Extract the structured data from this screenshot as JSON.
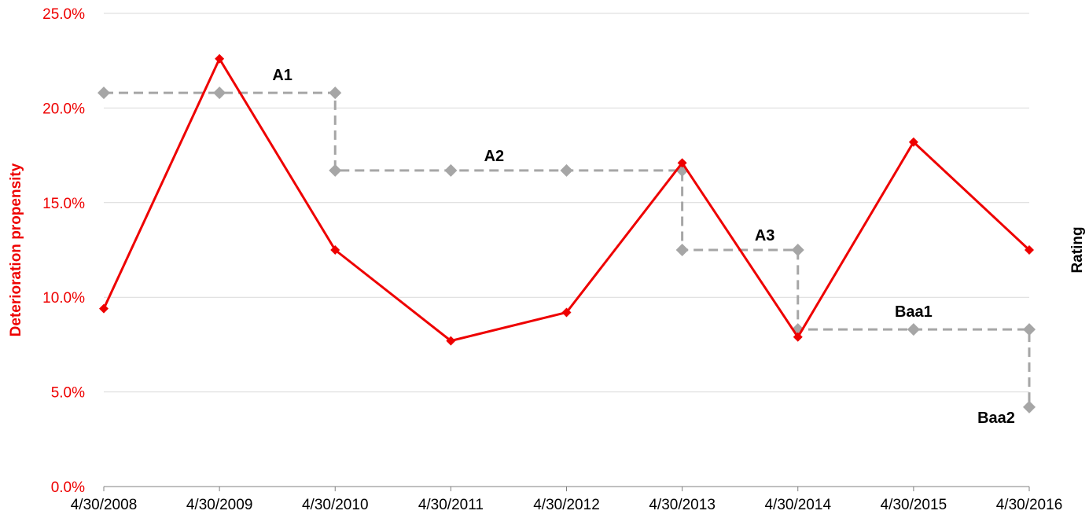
{
  "chart_data": {
    "type": "line",
    "x": [
      "4/30/2008",
      "4/30/2009",
      "4/30/2010",
      "4/30/2011",
      "4/30/2012",
      "4/30/2013",
      "4/30/2014",
      "4/30/2015",
      "4/30/2016"
    ],
    "ylabel": "Deterioration propensity",
    "y2label": "Rating",
    "ylim": [
      0,
      25
    ],
    "yticks": [
      "0.0%",
      "5.0%",
      "10.0%",
      "15.0%",
      "20.0%",
      "25.0%"
    ],
    "ytick_values": [
      0,
      5,
      10,
      15,
      20,
      25
    ],
    "grid": true,
    "colors": {
      "propensity": "#ee0000",
      "rating": "#a6a6a6",
      "axis_text": "#ee0000"
    },
    "series": [
      {
        "values": [
          9.4,
          22.6,
          12.5,
          7.7,
          9.2,
          17.1,
          7.9,
          18.2,
          12.5
        ]
      }
    ],
    "rating_series": {
      "points": [
        {
          "x": "4/30/2008",
          "y": 20.8
        },
        {
          "x": "4/30/2009",
          "y": 20.8
        },
        {
          "x": "4/30/2010",
          "y": 20.8
        },
        {
          "x": "4/30/2010",
          "y": 16.7
        },
        {
          "x": "4/30/2011",
          "y": 16.7
        },
        {
          "x": "4/30/2012",
          "y": 16.7
        },
        {
          "x": "4/30/2013",
          "y": 16.7
        },
        {
          "x": "4/30/2013",
          "y": 12.5
        },
        {
          "x": "4/30/2014",
          "y": 12.5
        },
        {
          "x": "4/30/2014",
          "y": 8.3
        },
        {
          "x": "4/30/2015",
          "y": 8.3
        },
        {
          "x": "4/30/2016",
          "y": 8.3
        },
        {
          "x": "4/30/2016",
          "y": 4.2
        }
      ],
      "labels": [
        {
          "text": "A1",
          "x": "4/30/2009",
          "y": 20.8
        },
        {
          "text": "A2",
          "x": "4/30/2011",
          "y": 16.7
        },
        {
          "text": "A3",
          "x": "4/30/2013",
          "y": 12.5
        },
        {
          "text": "Baa1",
          "x": "4/30/2015",
          "y": 8.3
        },
        {
          "text": "Baa2",
          "x": "4/30/2016",
          "y": 4.2
        }
      ]
    }
  }
}
